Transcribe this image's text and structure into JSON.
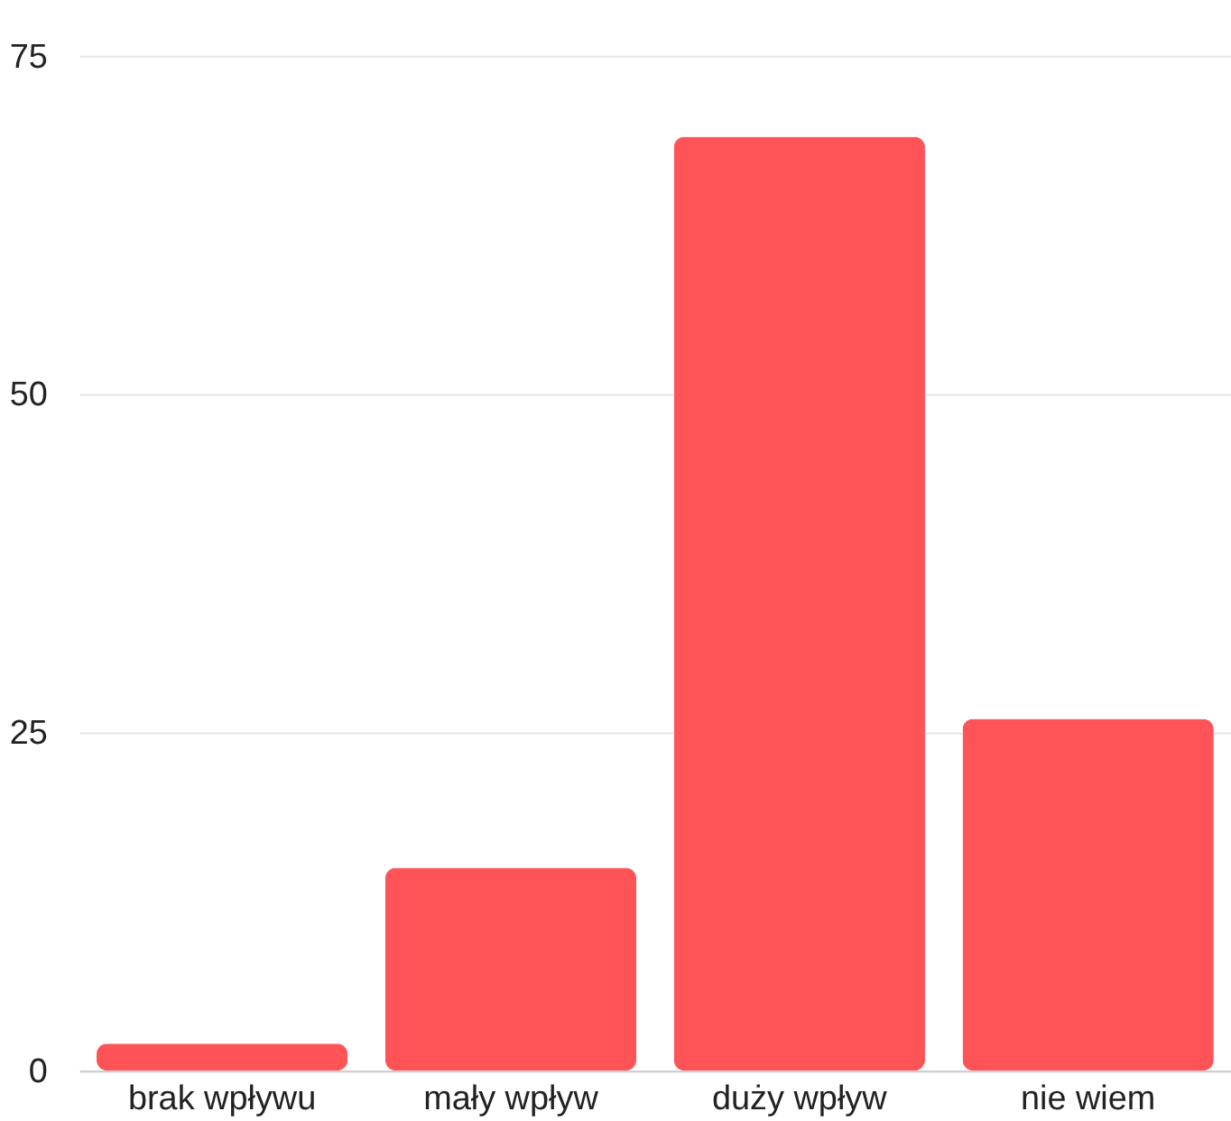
{
  "chart_data": {
    "type": "bar",
    "categories": [
      "brak wpływu",
      "mały wpływ",
      "duży wpływ",
      "nie wiem"
    ],
    "values": [
      2,
      15,
      69,
      26
    ],
    "color": "#fe5457",
    "ylim": [
      0,
      75
    ],
    "yticks": [
      0,
      25,
      50,
      75
    ],
    "grid": "y"
  }
}
